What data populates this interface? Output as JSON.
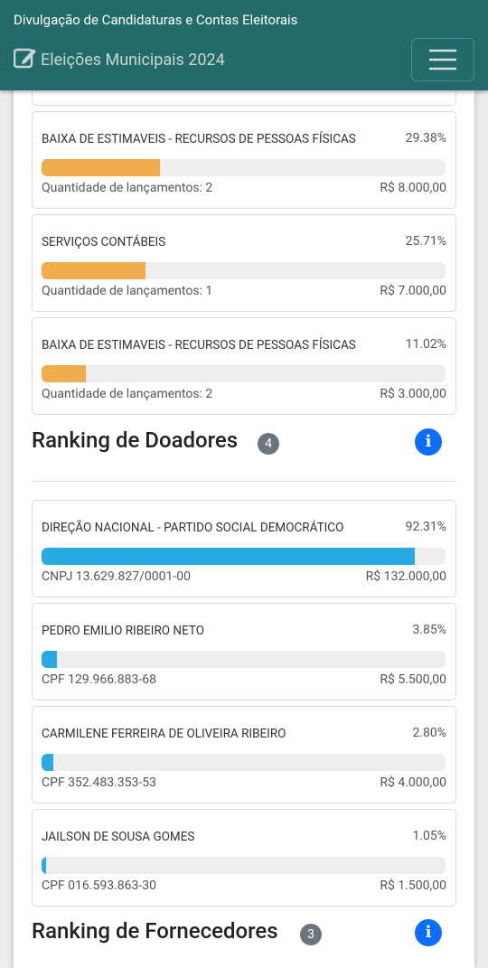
{
  "header": {
    "title": "Divulgação de Candidaturas e Contas Eleitorais",
    "subtitle": "Eleições Municipais 2024"
  },
  "expenses": [
    {
      "name": "BAIXA DE ESTIMAVEIS - RECURSOS DE PESSOAS FÍSICAS",
      "percent": {
        "value": 29.38,
        "label": "29.38%"
      },
      "info": "Quantidade de lançamentos: 2",
      "amount": "R$ 8.000,00"
    },
    {
      "name": "SERVIÇOS CONTÁBEIS",
      "percent": {
        "value": 25.71,
        "label": "25.71%"
      },
      "info": "Quantidade de lançamentos: 1",
      "amount": "R$ 7.000,00"
    },
    {
      "name": "BAIXA DE ESTIMAVEIS - RECURSOS DE PESSOAS FÍSICAS",
      "percent": {
        "value": 11.02,
        "label": "11.02%"
      },
      "info": "Quantidade de lançamentos: 2",
      "amount": "R$ 3.000,00"
    }
  ],
  "donors": {
    "title": "Ranking de Doadores",
    "count": 4,
    "items": [
      {
        "name": "DIREÇÃO NACIONAL - PARTIDO SOCIAL DEMOCRÁTICO",
        "percent": {
          "value": 92.31,
          "label": "92.31%"
        },
        "info": "CNPJ 13.629.827/0001-00",
        "amount": "R$ 132.000,00"
      },
      {
        "name": "PEDRO EMILIO RIBEIRO NETO",
        "percent": {
          "value": 3.85,
          "label": "3.85%"
        },
        "info": "CPF 129.966.883-68",
        "amount": "R$ 5.500,00"
      },
      {
        "name": "CARMILENE FERREIRA DE OLIVEIRA RIBEIRO",
        "percent": {
          "value": 2.8,
          "label": "2.80%"
        },
        "info": "CPF 352.483.353-53",
        "amount": "R$ 4.000,00"
      },
      {
        "name": "JAILSON DE SOUSA GOMES",
        "percent": {
          "value": 1.05,
          "label": "1.05%"
        },
        "info": "CPF 016.593.863-30",
        "amount": "R$ 1.500,00"
      }
    ]
  },
  "suppliers": {
    "title": "Ranking de Fornecedores",
    "count": 3
  }
}
